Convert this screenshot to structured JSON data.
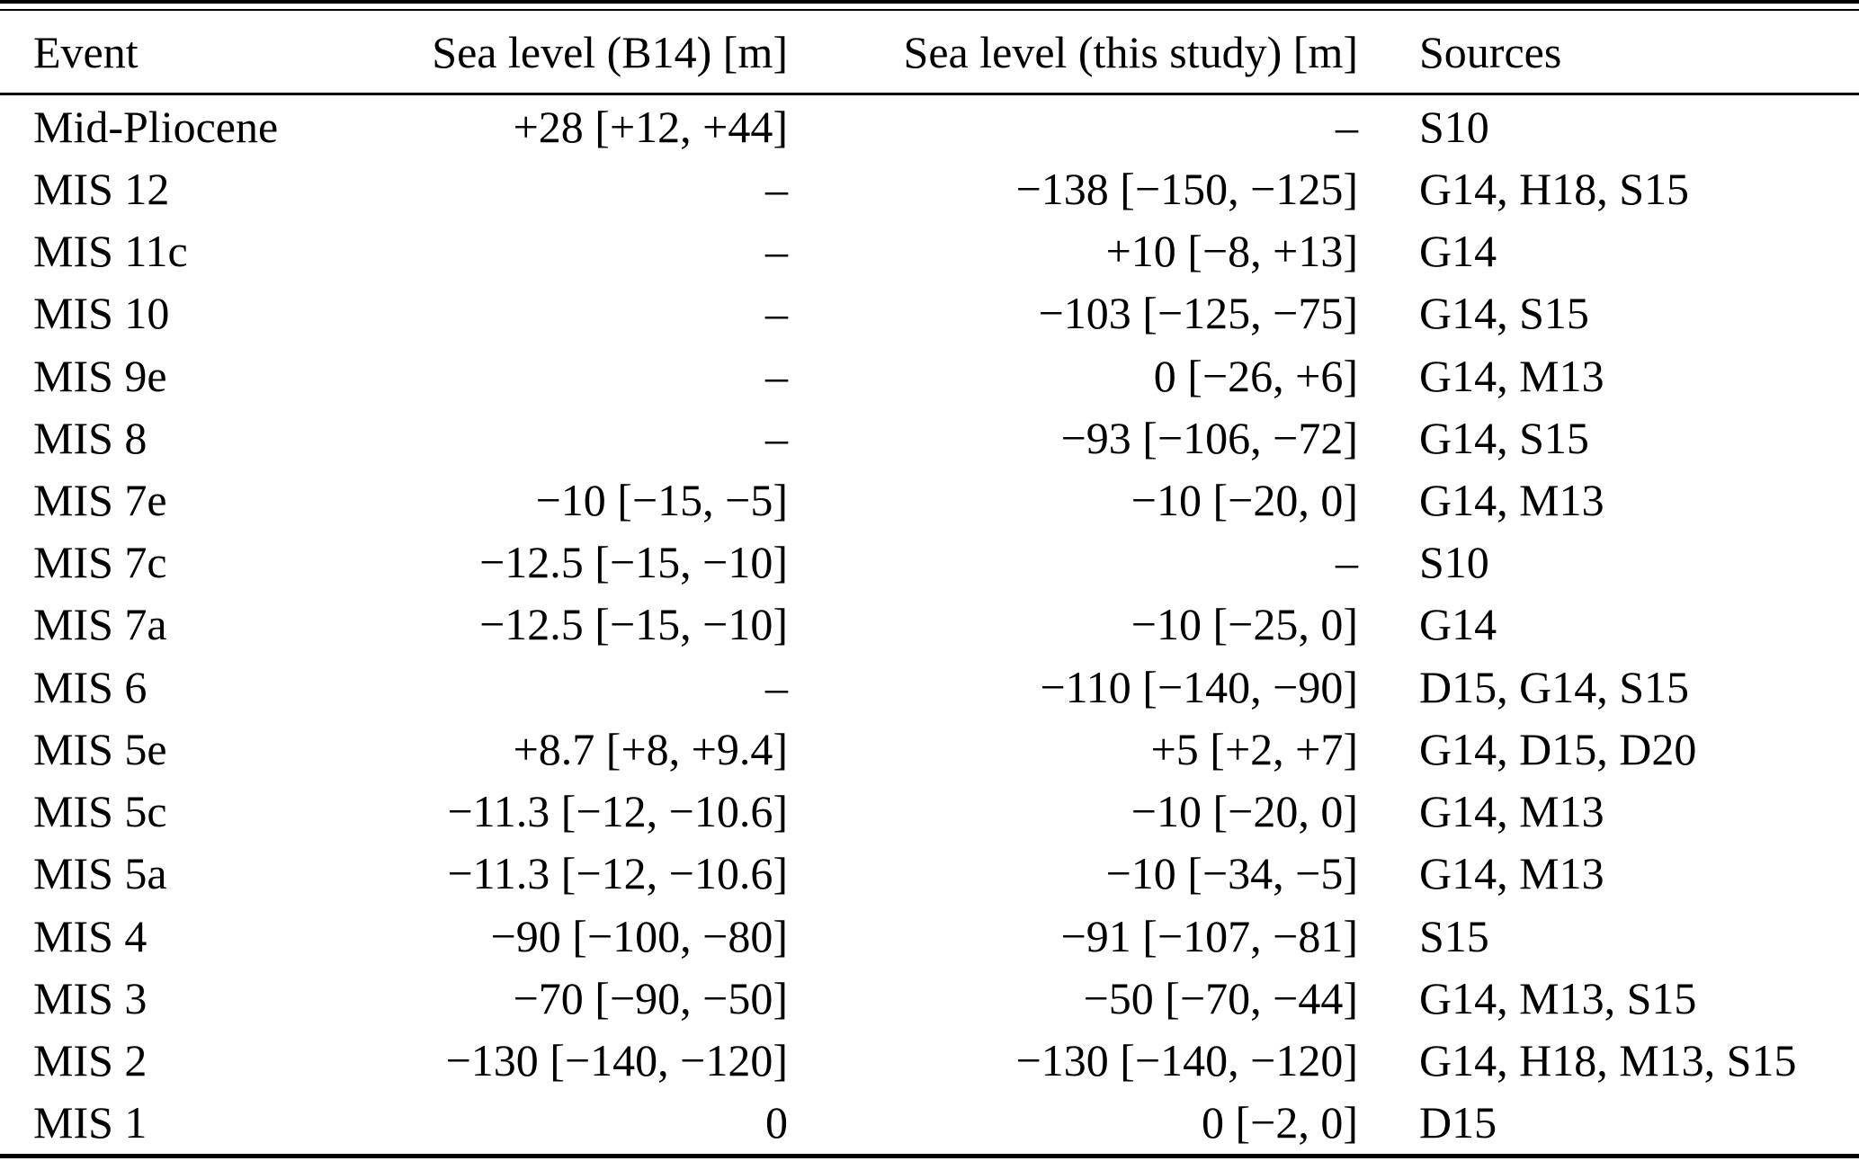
{
  "table": {
    "columns": {
      "event": "Event",
      "b14": "Sea level (B14) [m]",
      "this_study": "Sea level (this study) [m]",
      "sources": "Sources"
    },
    "rows": [
      {
        "event": "Mid-Pliocene",
        "b14": "+28 [+12, +44]",
        "this_study": "–",
        "sources": "S10"
      },
      {
        "event": "MIS 12",
        "b14": "–",
        "this_study": "−138 [−150, −125]",
        "sources": "G14, H18, S15"
      },
      {
        "event": "MIS 11c",
        "b14": "–",
        "this_study": "+10 [−8, +13]",
        "sources": "G14"
      },
      {
        "event": "MIS 10",
        "b14": "–",
        "this_study": "−103 [−125, −75]",
        "sources": "G14, S15"
      },
      {
        "event": "MIS 9e",
        "b14": "–",
        "this_study": "0 [−26, +6]",
        "sources": "G14, M13"
      },
      {
        "event": "MIS 8",
        "b14": "–",
        "this_study": "−93 [−106, −72]",
        "sources": "G14, S15"
      },
      {
        "event": "MIS 7e",
        "b14": "−10 [−15, −5]",
        "this_study": "−10 [−20, 0]",
        "sources": "G14, M13"
      },
      {
        "event": "MIS 7c",
        "b14": "−12.5 [−15, −10]",
        "this_study": "–",
        "sources": "S10"
      },
      {
        "event": "MIS 7a",
        "b14": "−12.5 [−15, −10]",
        "this_study": "−10 [−25, 0]",
        "sources": "G14"
      },
      {
        "event": "MIS 6",
        "b14": "–",
        "this_study": "−110 [−140, −90]",
        "sources": "D15, G14, S15"
      },
      {
        "event": "MIS 5e",
        "b14": "+8.7 [+8, +9.4]",
        "this_study": "+5 [+2, +7]",
        "sources": "G14, D15, D20"
      },
      {
        "event": "MIS 5c",
        "b14": "−11.3 [−12, −10.6]",
        "this_study": "−10 [−20, 0]",
        "sources": "G14, M13"
      },
      {
        "event": "MIS 5a",
        "b14": "−11.3 [−12, −10.6]",
        "this_study": "−10 [−34, −5]",
        "sources": "G14, M13"
      },
      {
        "event": "MIS 4",
        "b14": "−90 [−100, −80]",
        "this_study": "−91 [−107, −81]",
        "sources": "S15"
      },
      {
        "event": "MIS 3",
        "b14": "−70 [−90, −50]",
        "this_study": "−50 [−70, −44]",
        "sources": "G14, M13, S15"
      },
      {
        "event": "MIS 2",
        "b14": "−130 [−140, −120]",
        "this_study": "−130 [−140, −120]",
        "sources": "G14, H18, M13, S15"
      },
      {
        "event": "MIS 1",
        "b14": "0",
        "this_study": "0 [−2, 0]",
        "sources": "D15"
      }
    ]
  }
}
